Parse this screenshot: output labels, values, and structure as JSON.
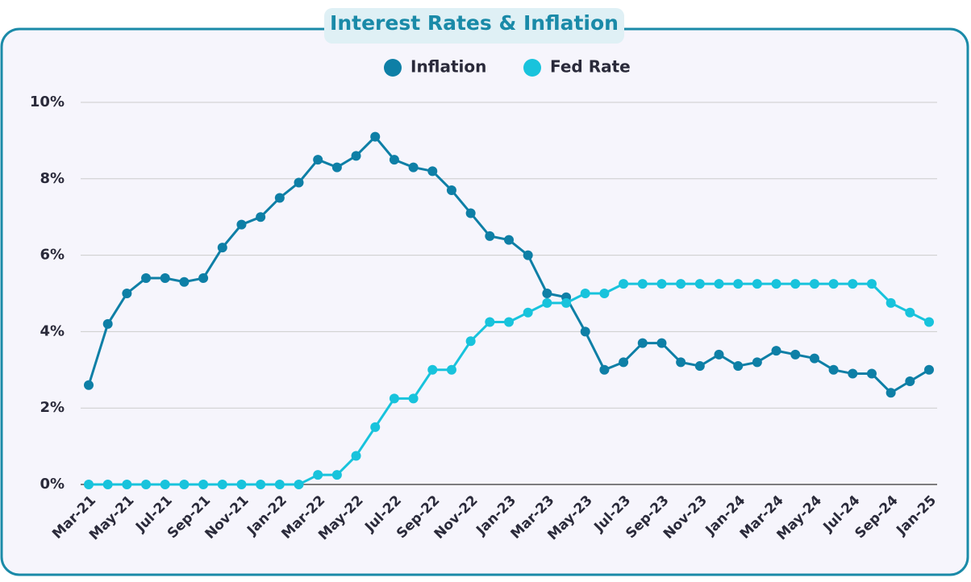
{
  "chart_data": {
    "type": "line",
    "title": "Interest Rates & Inflation",
    "categories": [
      "Mar-21",
      null,
      "May-21",
      null,
      "Jul-21",
      null,
      "Sep-21",
      null,
      "Nov-21",
      null,
      "Jan-22",
      null,
      "Mar-22",
      null,
      "May-22",
      null,
      "Jul-22",
      null,
      "Sep-22",
      null,
      "Nov-22",
      null,
      "Jan-23",
      null,
      "Mar-23",
      null,
      "May-23",
      null,
      "Jul-23",
      null,
      "Sep-23",
      null,
      "Nov-23",
      null,
      "Jan-24",
      null,
      "Mar-24",
      null,
      "May-24",
      null,
      "Jul-24",
      null,
      "Sep-24",
      null,
      "Jan-25"
    ],
    "series": [
      {
        "name": "Inflation",
        "color": "#0e7fa6",
        "values": [
          2.6,
          4.2,
          5.0,
          5.4,
          5.4,
          5.3,
          5.4,
          6.2,
          6.8,
          7.0,
          7.5,
          7.9,
          8.5,
          8.3,
          8.6,
          9.1,
          8.5,
          8.3,
          8.2,
          7.7,
          7.1,
          6.5,
          6.4,
          6.0,
          5.0,
          4.9,
          4.0,
          3.0,
          3.2,
          3.7,
          3.7,
          3.2,
          3.1,
          3.4,
          3.1,
          3.2,
          3.5,
          3.4,
          3.3,
          3.0,
          2.9,
          2.9,
          2.4,
          2.7,
          3.0
        ]
      },
      {
        "name": "Fed Rate",
        "color": "#18c3dc",
        "values": [
          0,
          0,
          0,
          0,
          0,
          0,
          0,
          0,
          0,
          0,
          0,
          0,
          0.25,
          0.25,
          0.75,
          1.5,
          2.25,
          2.25,
          3.0,
          3.0,
          3.75,
          4.25,
          4.25,
          4.5,
          4.75,
          4.75,
          5.0,
          5.0,
          5.25,
          5.25,
          5.25,
          5.25,
          5.25,
          5.25,
          5.25,
          5.25,
          5.25,
          5.25,
          5.25,
          5.25,
          5.25,
          5.25,
          4.75,
          4.5,
          4.25
        ]
      }
    ],
    "ylim": [
      0,
      10
    ],
    "yticks": [
      {
        "value": 0,
        "label": "0%"
      },
      {
        "value": 2,
        "label": "2%"
      },
      {
        "value": 4,
        "label": "4%"
      },
      {
        "value": 6,
        "label": "6%"
      },
      {
        "value": 8,
        "label": "8%"
      },
      {
        "value": 10,
        "label": "10%"
      }
    ],
    "grid": true
  }
}
